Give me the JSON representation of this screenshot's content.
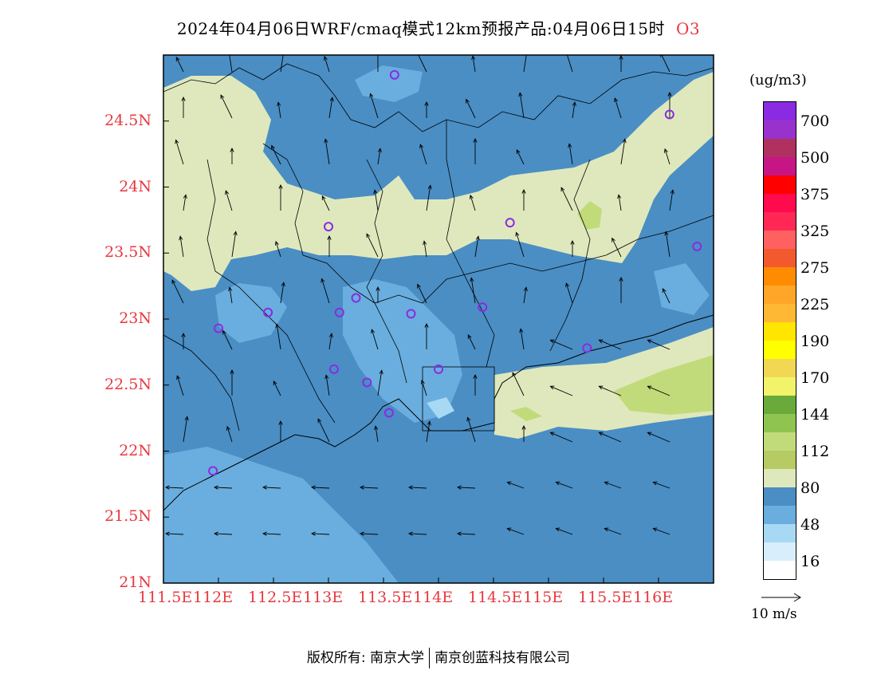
{
  "title": {
    "text": "2024年04月06日WRF/cmaq模式12km预报产品:04月06日15时",
    "species": "O3"
  },
  "map": {
    "lon_range": [
      111.5,
      116.5
    ],
    "lat_range": [
      21.0,
      25.0
    ],
    "x_ticks": [
      "111.5E",
      "112E",
      "112.5E",
      "113E",
      "113.5E",
      "114E",
      "114.5E",
      "115E",
      "115.5E",
      "116E"
    ],
    "y_ticks": [
      "21N",
      "21.5N",
      "22N",
      "22.5N",
      "23N",
      "23.5N",
      "24N",
      "24.5N"
    ],
    "colors": {
      "c32_48": "#69aede",
      "c48_80": "#4a8ec4",
      "c80_112": "#dfe8bd",
      "c112_144": "#c2db7a",
      "c144_170": "#8fc450",
      "c0_16": "#ffffff",
      "c16_32": "#d8eefb",
      "c32_lightblue": "#a7d9f5"
    },
    "stations": [
      {
        "lon": 113.6,
        "lat": 24.85
      },
      {
        "lon": 116.1,
        "lat": 24.55
      },
      {
        "lon": 113.0,
        "lat": 23.7
      },
      {
        "lon": 114.65,
        "lat": 23.73
      },
      {
        "lon": 116.35,
        "lat": 23.55
      },
      {
        "lon": 112.0,
        "lat": 22.93
      },
      {
        "lon": 112.45,
        "lat": 23.05
      },
      {
        "lon": 113.1,
        "lat": 23.05
      },
      {
        "lon": 113.25,
        "lat": 23.16
      },
      {
        "lon": 113.75,
        "lat": 23.04
      },
      {
        "lon": 114.4,
        "lat": 23.09
      },
      {
        "lon": 115.35,
        "lat": 22.78
      },
      {
        "lon": 113.05,
        "lat": 22.62
      },
      {
        "lon": 113.35,
        "lat": 22.52
      },
      {
        "lon": 114.0,
        "lat": 22.62
      },
      {
        "lon": 113.55,
        "lat": 22.29
      },
      {
        "lon": 111.95,
        "lat": 21.85
      }
    ]
  },
  "colorbar": {
    "units": "(ug/m3)",
    "colors": [
      "#8a2be2",
      "#9932cc",
      "#b03060",
      "#c71585",
      "#ff0000",
      "#ff0a4c",
      "#ff2855",
      "#ff6060",
      "#f25a2e",
      "#ff8c00",
      "#ffa628",
      "#ffb833",
      "#ffe600",
      "#ffff00",
      "#f2d852",
      "#f2f26b",
      "#6aaa3a",
      "#8fc450",
      "#c2db7a",
      "#b6cb63",
      "#dfe8bd",
      "#4a8ec4",
      "#69aede",
      "#a7d9f5",
      "#d8eefb",
      "#ffffff"
    ],
    "labels": [
      "700",
      "500",
      "375",
      "325",
      "275",
      "225",
      "190",
      "170",
      "144",
      "112",
      "80",
      "48",
      "16"
    ]
  },
  "wind_key": {
    "label": "10  m/s"
  },
  "footer": {
    "left": "版权所有: 南京大学",
    "right": "南京创蓝科技有限公司"
  }
}
